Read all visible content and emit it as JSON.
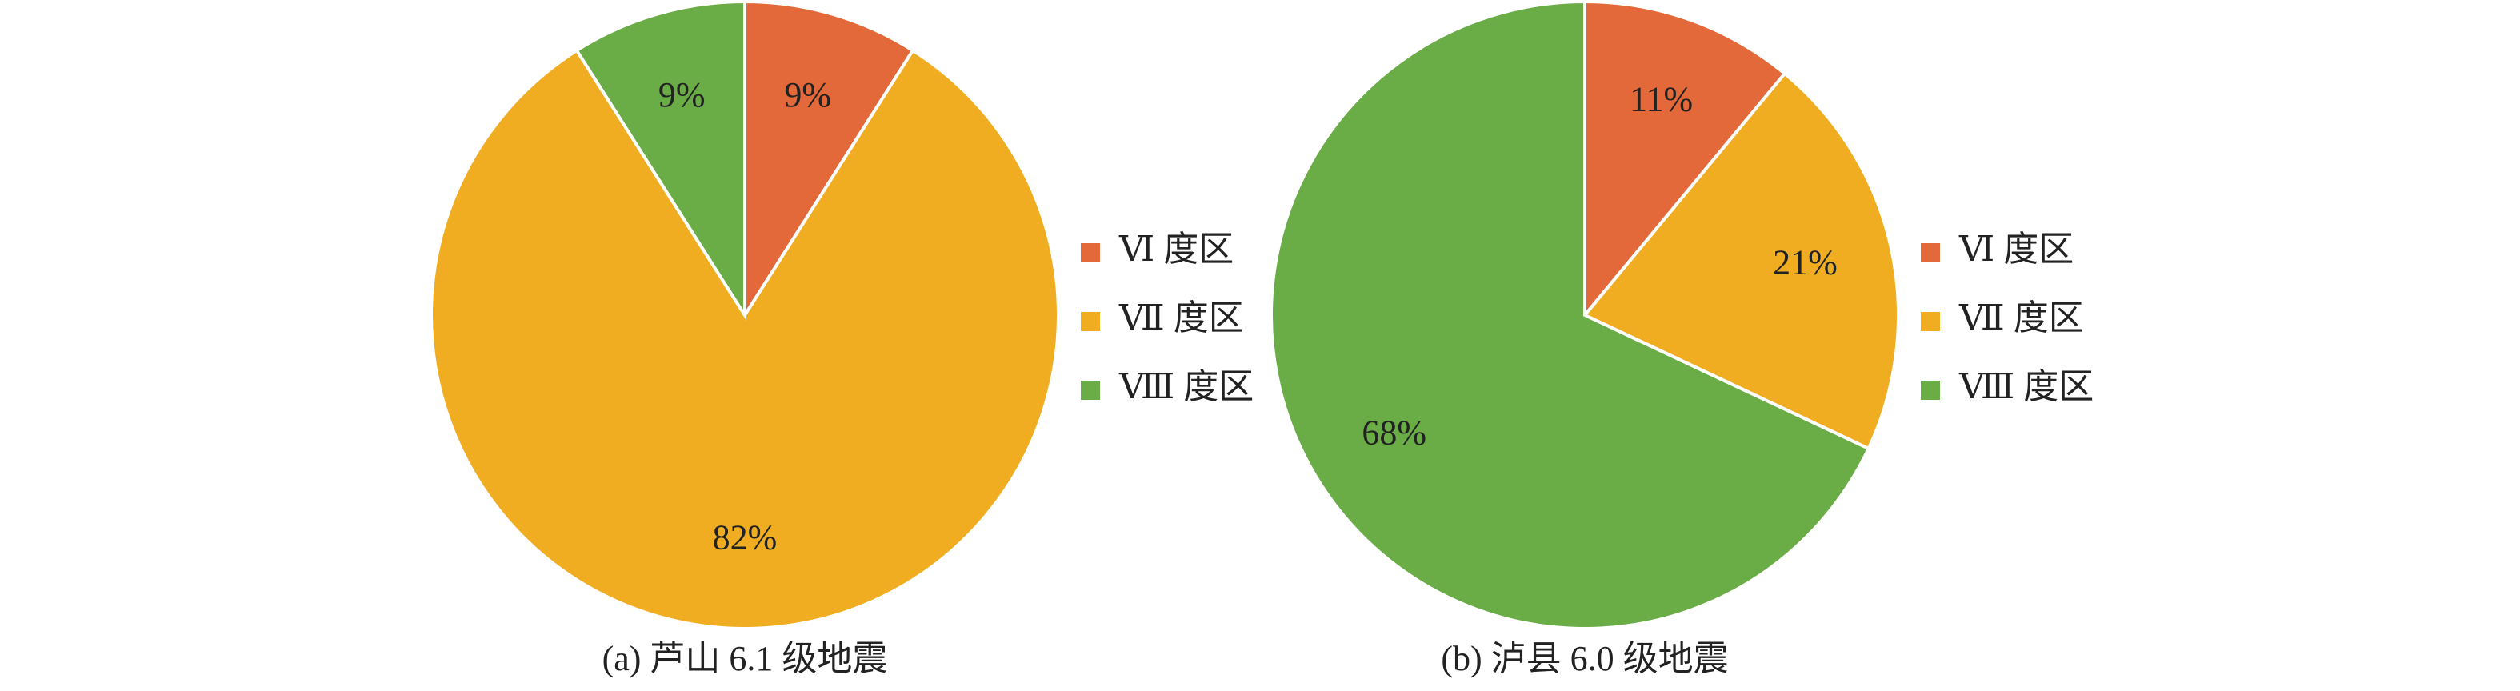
{
  "chart_data": [
    {
      "type": "pie",
      "title": "(a) 芦山 6.1 级地震",
      "categories": [
        "Ⅵ 度区",
        "Ⅶ 度区",
        "Ⅷ 度区"
      ],
      "values": [
        9,
        82,
        9
      ],
      "value_labels": [
        "9%",
        "82%",
        "9%"
      ],
      "colors": [
        "#e3693a",
        "#f0ad22",
        "#6aac46"
      ],
      "legend": "right"
    },
    {
      "type": "pie",
      "title": "(b) 泸县 6.0 级地震",
      "categories": [
        "Ⅵ 度区",
        "Ⅶ 度区",
        "Ⅷ 度区"
      ],
      "values": [
        11,
        21,
        68
      ],
      "value_labels": [
        "11%",
        "21%",
        "68%"
      ],
      "colors": [
        "#e3693a",
        "#f0ad22",
        "#6aac46"
      ],
      "legend": "right"
    }
  ]
}
